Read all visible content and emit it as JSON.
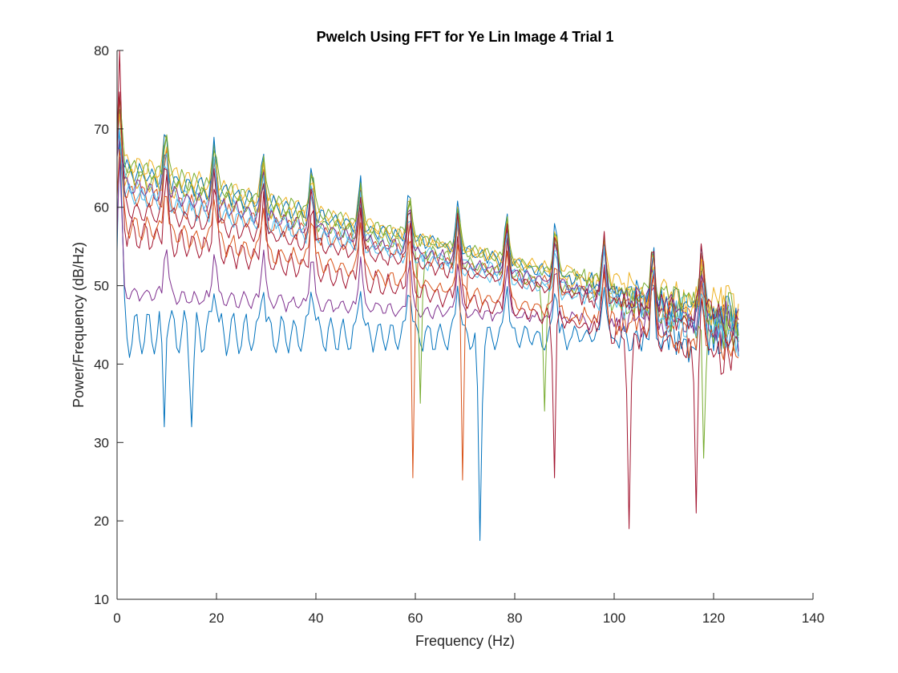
{
  "chart_data": {
    "type": "line",
    "title": "Pwelch Using FFT for Ye Lin Image 4 Trial 1",
    "xlabel": "Frequency (Hz)",
    "ylabel": "Power/Frequency (dB/Hz)",
    "xlim": [
      0,
      140
    ],
    "ylim": [
      10,
      80
    ],
    "xticks": [
      0,
      20,
      40,
      60,
      80,
      100,
      120,
      140
    ],
    "yticks": [
      10,
      20,
      30,
      40,
      50,
      60,
      70,
      80
    ],
    "grid": false,
    "legend": "none",
    "box": "left-bottom axes only",
    "x_start": 0,
    "x_end": 125,
    "x_step": 0.5,
    "note": "14 overlapping PSD channels; each series shows periodic peaks about every 9.8 Hz",
    "series": [
      {
        "color": "#0072BD",
        "start": 44,
        "end": 43,
        "start_peak": 71,
        "peak_height": 8,
        "ripple": 2.5,
        "dips": [
          [
            9.5,
            32
          ],
          [
            15,
            32
          ],
          [
            73,
            17.5
          ]
        ]
      },
      {
        "color": "#D95319",
        "start": 62,
        "end": 45,
        "start_peak": 73,
        "peak_height": 6,
        "ripple": 1.2,
        "dips": [
          [
            59.5,
            25.5
          ],
          [
            69.5,
            25.2
          ]
        ]
      },
      {
        "color": "#EDB120",
        "start": 66,
        "end": 45.5,
        "start_peak": 75,
        "peak_height": 5,
        "ripple": 1.0,
        "dips": []
      },
      {
        "color": "#7E2F8E",
        "start": 49,
        "end": 44.5,
        "start_peak": 66,
        "peak_height": 7,
        "ripple": 0.8,
        "dips": []
      },
      {
        "color": "#77AC30",
        "start": 64.5,
        "end": 44,
        "start_peak": 72,
        "peak_height": 6,
        "ripple": 1.0,
        "dips": [
          [
            61,
            35
          ],
          [
            86,
            34
          ],
          [
            118,
            28
          ]
        ]
      },
      {
        "color": "#4DBEEE",
        "start": 63,
        "end": 45,
        "start_peak": 73,
        "peak_height": 5,
        "ripple": 1.0,
        "dips": []
      },
      {
        "color": "#A2142F",
        "start": 57,
        "end": 41,
        "start_peak": 79,
        "peak_height": 9,
        "ripple": 1.5,
        "dips": [
          [
            88,
            25.5
          ],
          [
            103,
            19
          ],
          [
            116.5,
            21
          ]
        ]
      },
      {
        "color": "#0072BD",
        "start": 65,
        "end": 46,
        "start_peak": 70,
        "peak_height": 6,
        "ripple": 1.0,
        "dips": []
      },
      {
        "color": "#D95319",
        "start": 58,
        "end": 42,
        "start_peak": 68,
        "peak_height": 7,
        "ripple": 1.2,
        "dips": []
      },
      {
        "color": "#EDB120",
        "start": 64,
        "end": 47,
        "start_peak": 71,
        "peak_height": 5,
        "ripple": 1.0,
        "dips": []
      },
      {
        "color": "#7E2F8E",
        "start": 63,
        "end": 45,
        "start_peak": 70,
        "peak_height": 6,
        "ripple": 1.0,
        "dips": []
      },
      {
        "color": "#77AC30",
        "start": 65.5,
        "end": 46,
        "start_peak": 74,
        "peak_height": 6,
        "ripple": 1.0,
        "dips": []
      },
      {
        "color": "#4DBEEE",
        "start": 62,
        "end": 44,
        "start_peak": 70,
        "peak_height": 6,
        "ripple": 1.0,
        "dips": []
      },
      {
        "color": "#A2142F",
        "start": 60,
        "end": 45,
        "start_peak": 76,
        "peak_height": 8,
        "ripple": 1.0,
        "dips": []
      }
    ]
  }
}
